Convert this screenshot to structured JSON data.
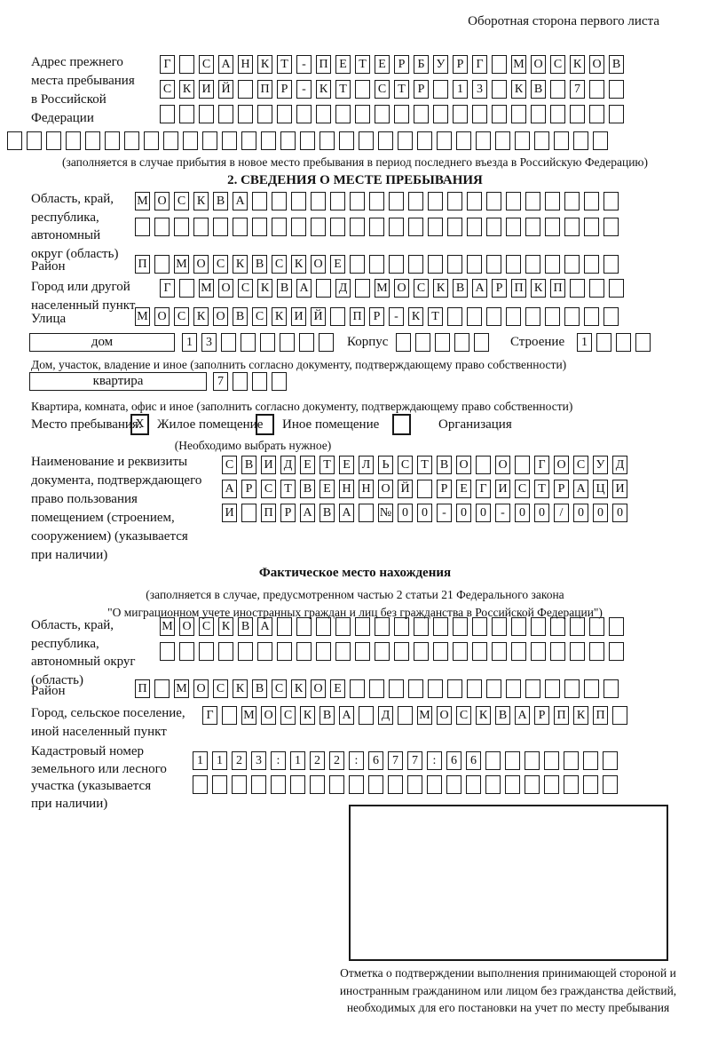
{
  "header_note": "Оборотная сторона первого листа",
  "prev_address": {
    "label": "Адрес прежнего\nместа пребывания\nв Российской\nФедерации",
    "row1": {
      "text": "Г САНКТ-ПЕТЕРБУРГ МОСКОВ",
      "len": 24
    },
    "row2": {
      "text": "СКИЙ ПР-КТ СТР 13 КВ 7",
      "len": 24
    },
    "row3": {
      "text": "",
      "len": 24
    },
    "row4": {
      "text": "",
      "len": 31
    },
    "note": "(заполняется в случае прибытия в новое место пребывания в период последнего въезда в Российскую Федерацию)"
  },
  "section2": {
    "title": "2. СВЕДЕНИЯ О МЕСТЕ ПРЕБЫВАНИЯ",
    "oblast": {
      "label": "Область, край,\nреспублика,\nавтономный\nокруг (область)",
      "row1": {
        "text": "МОСКВА",
        "len": 25
      },
      "row2": {
        "text": "",
        "len": 25
      }
    },
    "raion": {
      "label": "Район",
      "row": {
        "text": "П МОСКВСКОЕ",
        "len": 25
      }
    },
    "gorod": {
      "label": "Город или другой\nнаселенный пункт",
      "row": {
        "text": "Г МОСКВА Д МОСКВАРПКП",
        "len": 24
      }
    },
    "ulitsa": {
      "label": "Улица",
      "row": {
        "text": "МОСКОВСКИЙ ПР-КТ",
        "len": 25
      }
    },
    "dom": {
      "box_label": "дом",
      "cells": {
        "text": "13",
        "len": 8
      },
      "korpus_label": "Корпус",
      "korpus_cells": {
        "text": "",
        "len": 5
      },
      "stroenie_label": "Строение",
      "stroenie_cells": {
        "text": "1",
        "len": 4
      },
      "note": "Дом, участок, владение и иное (заполнить согласно документу, подтверждающему право собственности)"
    },
    "kvartira": {
      "box_label": "квартира",
      "cells": {
        "text": "7",
        "len": 4
      },
      "note": "Квартира, комната, офис и иное (заполнить согласно документу, подтверждающему право собственности)"
    },
    "mesto": {
      "label": "Место пребывания:",
      "opt1": {
        "label": "Жилое помещение",
        "value": "X"
      },
      "opt2": {
        "label": "Иное помещение",
        "value": ""
      },
      "opt3": {
        "label": "Организация",
        "value": ""
      },
      "note": "(Необходимо выбрать нужное)"
    },
    "document": {
      "label": "Наименование и реквизиты\nдокумента, подтверждающего\nправо пользования\nпомещением (строением,\nсооружением) (указывается\nпри наличии)",
      "row1": {
        "text": "СВИДЕТЕЛЬСТВО О ГОСУД",
        "len": 21
      },
      "row2": {
        "text": "АРСТВЕННОЙ РЕГИСТРАЦИ",
        "len": 21
      },
      "row3": {
        "text": "И ПРАВА №00-00-00/000",
        "len": 21
      }
    }
  },
  "fact": {
    "title": "Фактическое место нахождения",
    "note": "(заполняется в случае, предусмотренном частью 2 статьи 21 Федерального закона\n\"О миграционном учете иностранных граждан и лиц без гражданства в Российской Федерации\")",
    "oblast": {
      "label": "Область, край,\nреспублика,\nавтономный округ\n(область)",
      "row1": {
        "text": "МОСКВА",
        "len": 24
      },
      "row2": {
        "text": "",
        "len": 24
      }
    },
    "raion": {
      "label": "Район",
      "row": {
        "text": "П МОСКВСКОЕ",
        "len": 25
      }
    },
    "gorod": {
      "label": "Город, сельское поселение,\nиной населенный пункт",
      "row": {
        "text": "Г МОСКВА Д МОСКВАРПКП",
        "len": 22
      }
    },
    "kadastr": {
      "label": "Кадастровый номер\nземельного или лесного\nучастка (указывается\nпри наличии)",
      "row1": {
        "text": "1123:122:677:66",
        "len": 22
      },
      "row2": {
        "text": "",
        "len": 22
      }
    },
    "mark_caption": "Отметка о подтверждении выполнения принимающей стороной и иностранным гражданином или лицом без гражданства действий, необходимых для его постановки на учет по месту пребывания"
  }
}
